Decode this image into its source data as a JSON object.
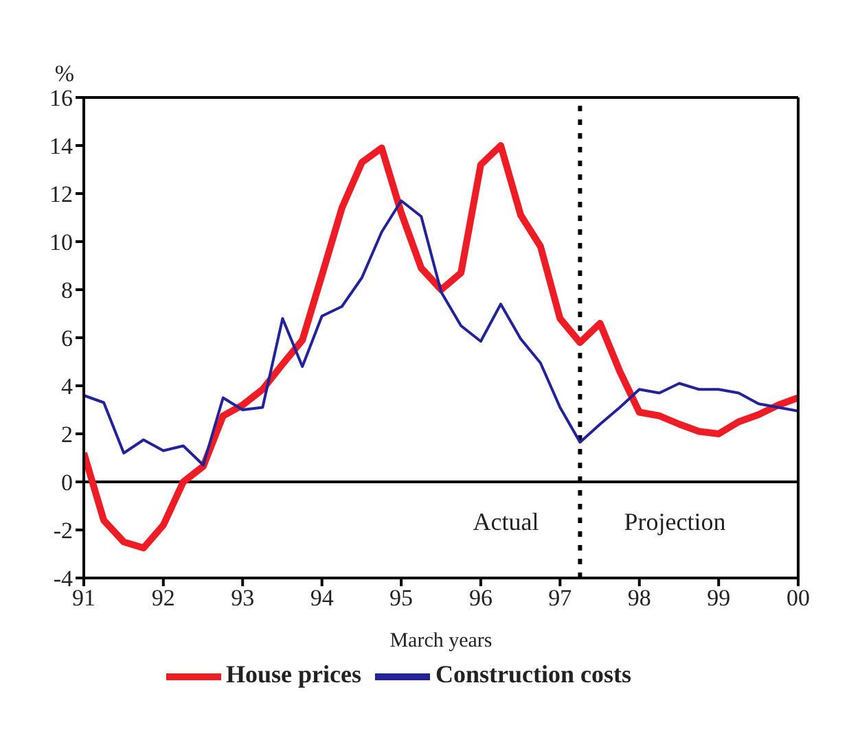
{
  "chart_data": {
    "type": "line",
    "ylabel": "%",
    "xlabel": "March years",
    "x": [
      "1991-03",
      "1991-06",
      "1991-09",
      "1991-12",
      "1992-03",
      "1992-06",
      "1992-09",
      "1992-12",
      "1993-03",
      "1993-06",
      "1993-09",
      "1993-12",
      "1994-03",
      "1994-06",
      "1994-09",
      "1994-12",
      "1995-03",
      "1995-06",
      "1995-09",
      "1995-12",
      "1996-03",
      "1996-06",
      "1996-09",
      "1996-12",
      "1997-03",
      "1997-06",
      "1997-09",
      "1997-12",
      "1998-03",
      "1998-06",
      "1998-09",
      "1998-12",
      "1999-03",
      "1999-06",
      "1999-09",
      "1999-12",
      "2000-03"
    ],
    "series": [
      {
        "name": "House prices",
        "color": "#ee1c25",
        "values": [
          1.2,
          -1.6,
          -2.5,
          -2.75,
          -1.8,
          0,
          0.65,
          2.75,
          3.2,
          3.85,
          4.9,
          5.9,
          8.6,
          11.4,
          13.3,
          13.9,
          11.2,
          8.9,
          8.0,
          8.7,
          13.2,
          14.0,
          11.1,
          9.8,
          6.8,
          5.8,
          6.6,
          4.6,
          2.9,
          2.75,
          2.4,
          2.1,
          2.0,
          2.5,
          2.8,
          3.2,
          3.5
        ]
      },
      {
        "name": "Construction costs",
        "color": "#22229a",
        "values": [
          3.6,
          3.3,
          1.2,
          1.75,
          1.3,
          1.5,
          0.7,
          3.5,
          3.0,
          3.1,
          6.8,
          4.8,
          6.9,
          7.3,
          8.5,
          10.4,
          11.7,
          11.05,
          7.9,
          6.5,
          5.85,
          7.4,
          5.95,
          4.95,
          3.1,
          1.65,
          2.4,
          3.1,
          3.85,
          3.7,
          4.1,
          3.85,
          3.85,
          3.7,
          3.25,
          3.1,
          2.95
        ]
      }
    ],
    "xlim": [
      "1991-03",
      "2000-03"
    ],
    "xticks": [
      {
        "value": "1991-03",
        "label": "91"
      },
      {
        "value": "1992-03",
        "label": "92"
      },
      {
        "value": "1993-03",
        "label": "93"
      },
      {
        "value": "1994-03",
        "label": "94"
      },
      {
        "value": "1995-03",
        "label": "95"
      },
      {
        "value": "1996-03",
        "label": "96"
      },
      {
        "value": "1997-03",
        "label": "97"
      },
      {
        "value": "1998-03",
        "label": "98"
      },
      {
        "value": "1999-03",
        "label": "99"
      },
      {
        "value": "2000-03",
        "label": "00"
      }
    ],
    "ylim": [
      -4,
      16
    ],
    "yticks": [
      -4,
      -2,
      0,
      2,
      4,
      6,
      8,
      10,
      12,
      14,
      16
    ],
    "ref_lines": [
      {
        "axis": "x",
        "value": "1997-06",
        "line_style": "dotted",
        "color": "#000000"
      },
      {
        "axis": "y",
        "value": 0,
        "line_style": "solid",
        "color": "#000000"
      }
    ],
    "annotations": [
      "Actual",
      "Projection"
    ],
    "legend": "bottom",
    "grid": false,
    "marker": "none",
    "line_style": "solid"
  }
}
